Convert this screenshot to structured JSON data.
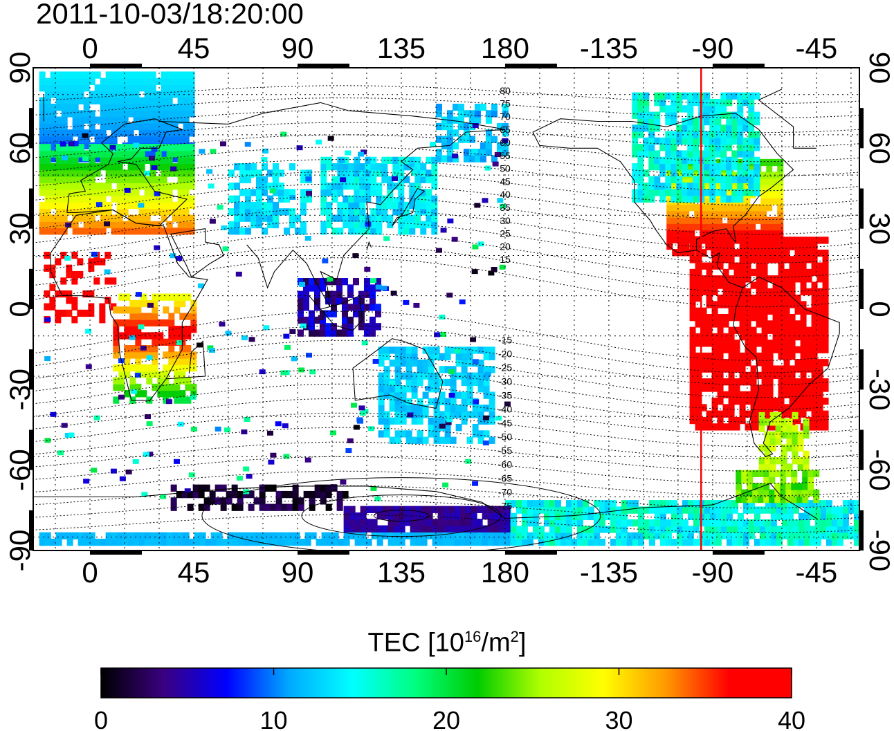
{
  "timestamp": "2011-10-03/18:20:00",
  "colorbar": {
    "label_prefix": "TEC  [10",
    "label_exp1": "16",
    "label_mid": "/m",
    "label_exp2": "2",
    "label_suffix": "]",
    "ticks": [
      "0",
      "10",
      "20",
      "30",
      "40"
    ],
    "range": [
      0,
      40
    ],
    "colors": [
      "#000000",
      "#3a0080",
      "#0000ff",
      "#00aaff",
      "#00ffff",
      "#00ff80",
      "#00cc00",
      "#b0ff00",
      "#ffff00",
      "#ff9900",
      "#ff0000",
      "#ff0000"
    ]
  },
  "map": {
    "lon_ticks_top": [
      "0",
      "45",
      "90",
      "135",
      "180",
      "-135",
      "-90",
      "-45"
    ],
    "lon_ticks_bottom": [
      "0",
      "45",
      "90",
      "135",
      "180",
      "-135",
      "-90",
      "-45"
    ],
    "lat_ticks_left": [
      "90",
      "60",
      "30",
      "0",
      "-30",
      "-60",
      "-90"
    ],
    "lat_ticks_right": [
      "90",
      "60",
      "30",
      "0",
      "-30",
      "-60",
      "-90"
    ],
    "contour_labels": [
      "80",
      "75",
      "70",
      "65",
      "60",
      "55",
      "50",
      "45",
      "40",
      "35",
      "30",
      "25",
      "20",
      "15",
      "-15",
      "-20",
      "-25",
      "-30",
      "-35",
      "-40",
      "-45",
      "-50",
      "-55",
      "-60",
      "-65",
      "-70",
      "-75"
    ],
    "reference_meridian": "-95",
    "reference_color": "#ff0000"
  }
}
